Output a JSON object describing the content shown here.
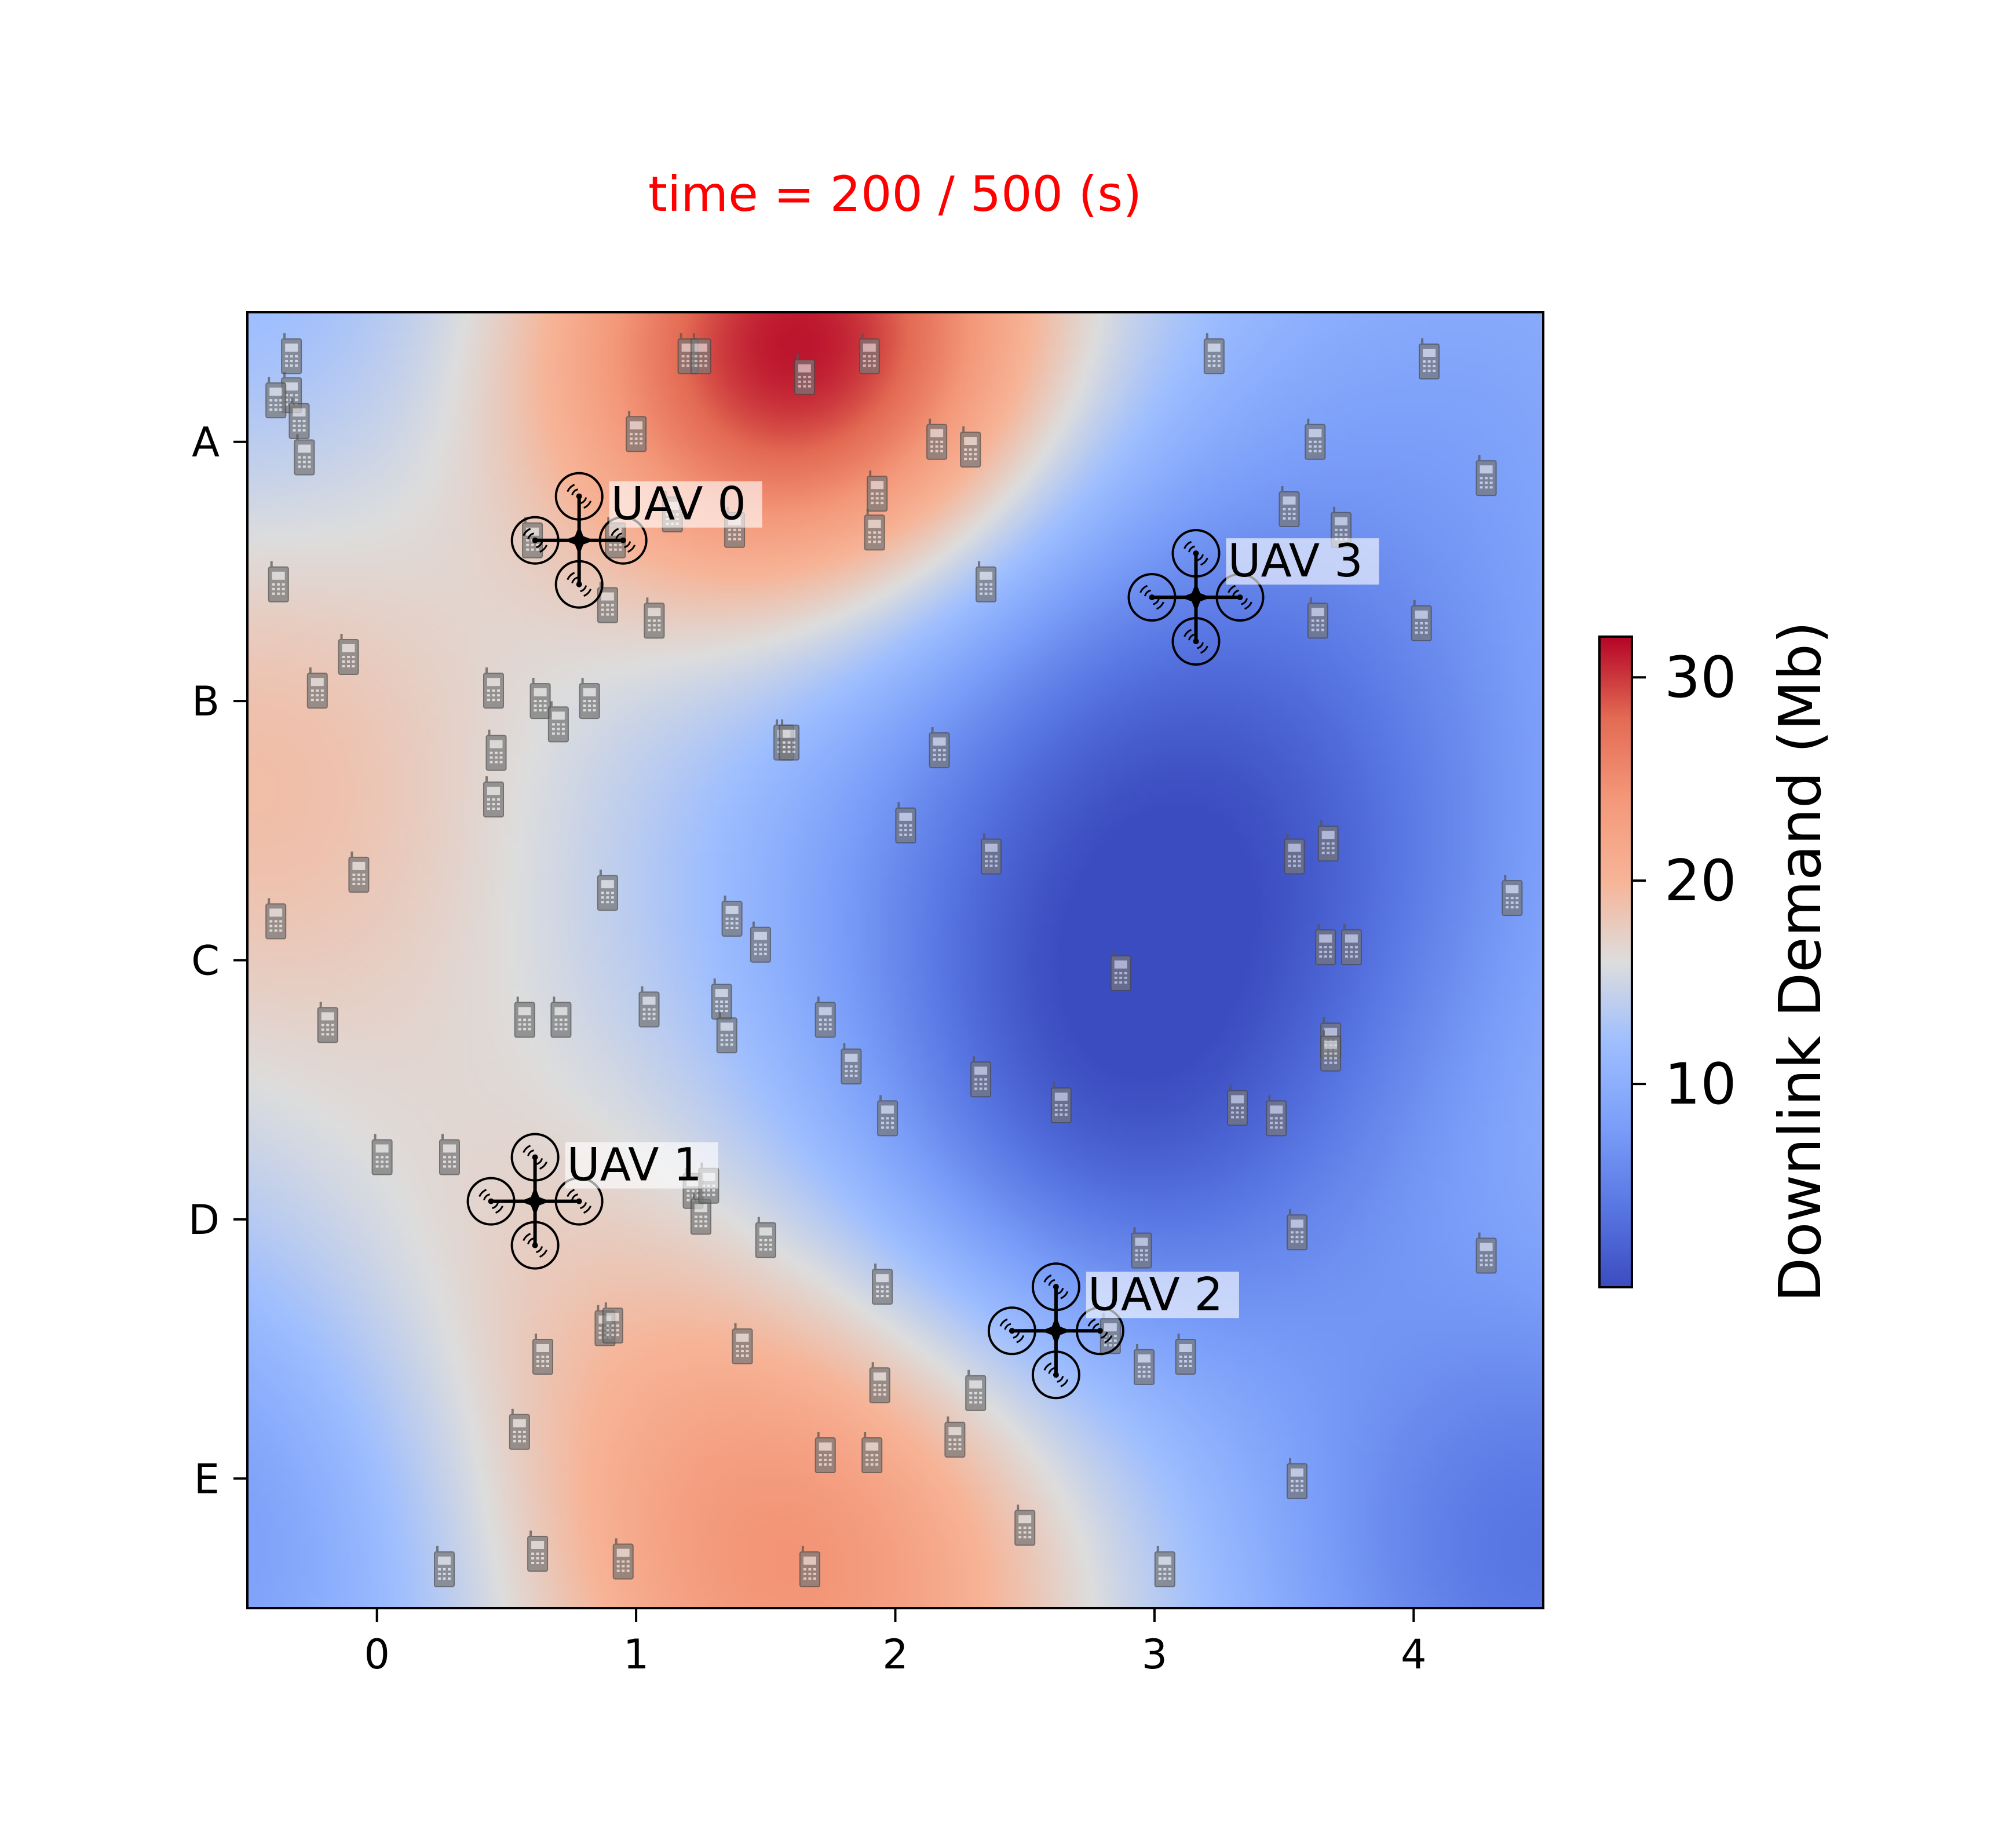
{
  "chart_data": {
    "type": "heatmap",
    "title": "time = 200 / 500 (s)",
    "title_color": "#ff0000",
    "xlabel": "",
    "ylabel": "",
    "xlim": [
      -0.5,
      4.5
    ],
    "ylim": [
      -0.5,
      4.5
    ],
    "x_ticks": [
      {
        "value": 0,
        "label": "0"
      },
      {
        "value": 1,
        "label": "1"
      },
      {
        "value": 2,
        "label": "2"
      },
      {
        "value": 3,
        "label": "3"
      },
      {
        "value": 4,
        "label": "4"
      }
    ],
    "y_ticks": [
      {
        "value": 0,
        "label": "A"
      },
      {
        "value": 1,
        "label": "B"
      },
      {
        "value": 2,
        "label": "C"
      },
      {
        "value": 3,
        "label": "D"
      },
      {
        "value": 4,
        "label": "E"
      }
    ],
    "grid": false,
    "colormap": "coolwarm",
    "colorbar": {
      "label": "Downlink Demand (Mb)",
      "range": [
        0,
        32
      ],
      "ticks": [
        10,
        20,
        30
      ],
      "tick_labels": [
        "10",
        "20",
        "30"
      ]
    },
    "demand_field": {
      "base": 13,
      "hotspots": [
        {
          "x": 1.65,
          "y": -0.35,
          "peak": 19,
          "spread": 0.7
        },
        {
          "x": 1.65,
          "y": 4.35,
          "peak": 11,
          "spread": 0.8
        },
        {
          "x": -0.5,
          "y": 1.3,
          "peak": 6,
          "spread": 0.9
        },
        {
          "x": 0.5,
          "y": 3.3,
          "peak": 4,
          "spread": 0.8
        },
        {
          "x": 3.1,
          "y": 1.5,
          "peak": -12,
          "spread": 1.0
        },
        {
          "x": 2.8,
          "y": 2.7,
          "peak": -6,
          "spread": 0.7
        },
        {
          "x": 4.5,
          "y": 4.3,
          "peak": -9,
          "spread": 0.8
        },
        {
          "x": -0.6,
          "y": 4.1,
          "peak": -6,
          "spread": 0.8
        },
        {
          "x": 4.4,
          "y": -0.3,
          "peak": -3,
          "spread": 0.8
        },
        {
          "x": -0.5,
          "y": -0.5,
          "peak": -2,
          "spread": 0.6
        }
      ]
    },
    "uavs": [
      {
        "name": "UAV 0",
        "x": 0.78,
        "y": 0.38
      },
      {
        "name": "UAV 1",
        "x": 0.61,
        "y": 2.93
      },
      {
        "name": "UAV 2",
        "x": 2.62,
        "y": 3.43
      },
      {
        "name": "UAV 3",
        "x": 3.16,
        "y": 0.6
      }
    ],
    "users": [
      [
        -0.33,
        -0.33
      ],
      [
        -0.33,
        -0.18
      ],
      [
        -0.3,
        -0.08
      ],
      [
        -0.28,
        0.06
      ],
      [
        -0.38,
        0.55
      ],
      [
        -0.11,
        0.83
      ],
      [
        -0.23,
        0.96
      ],
      [
        -0.07,
        1.67
      ],
      [
        -0.39,
        1.85
      ],
      [
        -0.19,
        2.25
      ],
      [
        0.02,
        2.76
      ],
      [
        0.28,
        2.76
      ],
      [
        0.57,
        2.23
      ],
      [
        0.71,
        2.23
      ],
      [
        0.45,
        0.96
      ],
      [
        0.63,
        1.0
      ],
      [
        0.7,
        1.09
      ],
      [
        0.82,
        1.0
      ],
      [
        0.46,
        1.2
      ],
      [
        0.45,
        1.38
      ],
      [
        0.89,
        1.74
      ],
      [
        1.05,
        2.19
      ],
      [
        1.0,
        -0.03
      ],
      [
        1.38,
        0.34
      ],
      [
        1.14,
        0.28
      ],
      [
        1.07,
        0.69
      ],
      [
        0.89,
        0.63
      ],
      [
        0.92,
        0.38
      ],
      [
        0.6,
        0.38
      ],
      [
        1.2,
        -0.33
      ],
      [
        1.25,
        -0.33
      ],
      [
        1.65,
        -0.25
      ],
      [
        1.9,
        -0.33
      ],
      [
        1.93,
        0.2
      ],
      [
        1.92,
        0.35
      ],
      [
        2.16,
        0.0
      ],
      [
        2.29,
        0.03
      ],
      [
        2.35,
        0.55
      ],
      [
        1.57,
        1.16
      ],
      [
        1.59,
        1.16
      ],
      [
        2.17,
        1.19
      ],
      [
        2.04,
        1.48
      ],
      [
        2.37,
        1.6
      ],
      [
        1.37,
        1.84
      ],
      [
        1.48,
        1.94
      ],
      [
        1.33,
        2.16
      ],
      [
        1.35,
        2.29
      ],
      [
        1.73,
        2.23
      ],
      [
        1.83,
        2.41
      ],
      [
        1.97,
        2.61
      ],
      [
        2.33,
        2.46
      ],
      [
        2.64,
        2.56
      ],
      [
        2.87,
        2.05
      ],
      [
        3.54,
        1.6
      ],
      [
        3.67,
        1.55
      ],
      [
        3.66,
        1.95
      ],
      [
        3.76,
        1.95
      ],
      [
        3.68,
        2.31
      ],
      [
        3.68,
        2.36
      ],
      [
        3.32,
        2.57
      ],
      [
        3.47,
        2.61
      ],
      [
        3.55,
        3.05
      ],
      [
        4.28,
        3.14
      ],
      [
        3.52,
        0.26
      ],
      [
        3.62,
        0.0
      ],
      [
        3.72,
        0.34
      ],
      [
        3.63,
        0.69
      ],
      [
        4.03,
        0.7
      ],
      [
        4.28,
        0.14
      ],
      [
        4.06,
        -0.31
      ],
      [
        3.23,
        -0.33
      ],
      [
        2.95,
        3.12
      ],
      [
        1.22,
        2.89
      ],
      [
        1.25,
        2.99
      ],
      [
        1.28,
        2.87
      ],
      [
        1.5,
        3.08
      ],
      [
        1.95,
        3.26
      ],
      [
        1.94,
        3.64
      ],
      [
        2.31,
        3.67
      ],
      [
        2.23,
        3.85
      ],
      [
        1.73,
        3.91
      ],
      [
        1.91,
        3.91
      ],
      [
        2.5,
        4.19
      ],
      [
        3.04,
        4.35
      ],
      [
        3.55,
        4.01
      ],
      [
        2.83,
        3.45
      ],
      [
        2.96,
        3.57
      ],
      [
        3.12,
        3.53
      ],
      [
        1.41,
        3.49
      ],
      [
        0.88,
        3.42
      ],
      [
        0.91,
        3.41
      ],
      [
        0.64,
        3.53
      ],
      [
        0.55,
        3.82
      ],
      [
        0.62,
        4.29
      ],
      [
        0.95,
        4.32
      ],
      [
        0.26,
        4.35
      ],
      [
        1.67,
        4.35
      ],
      [
        4.38,
        1.76
      ],
      [
        -0.39,
        -0.16
      ]
    ]
  }
}
